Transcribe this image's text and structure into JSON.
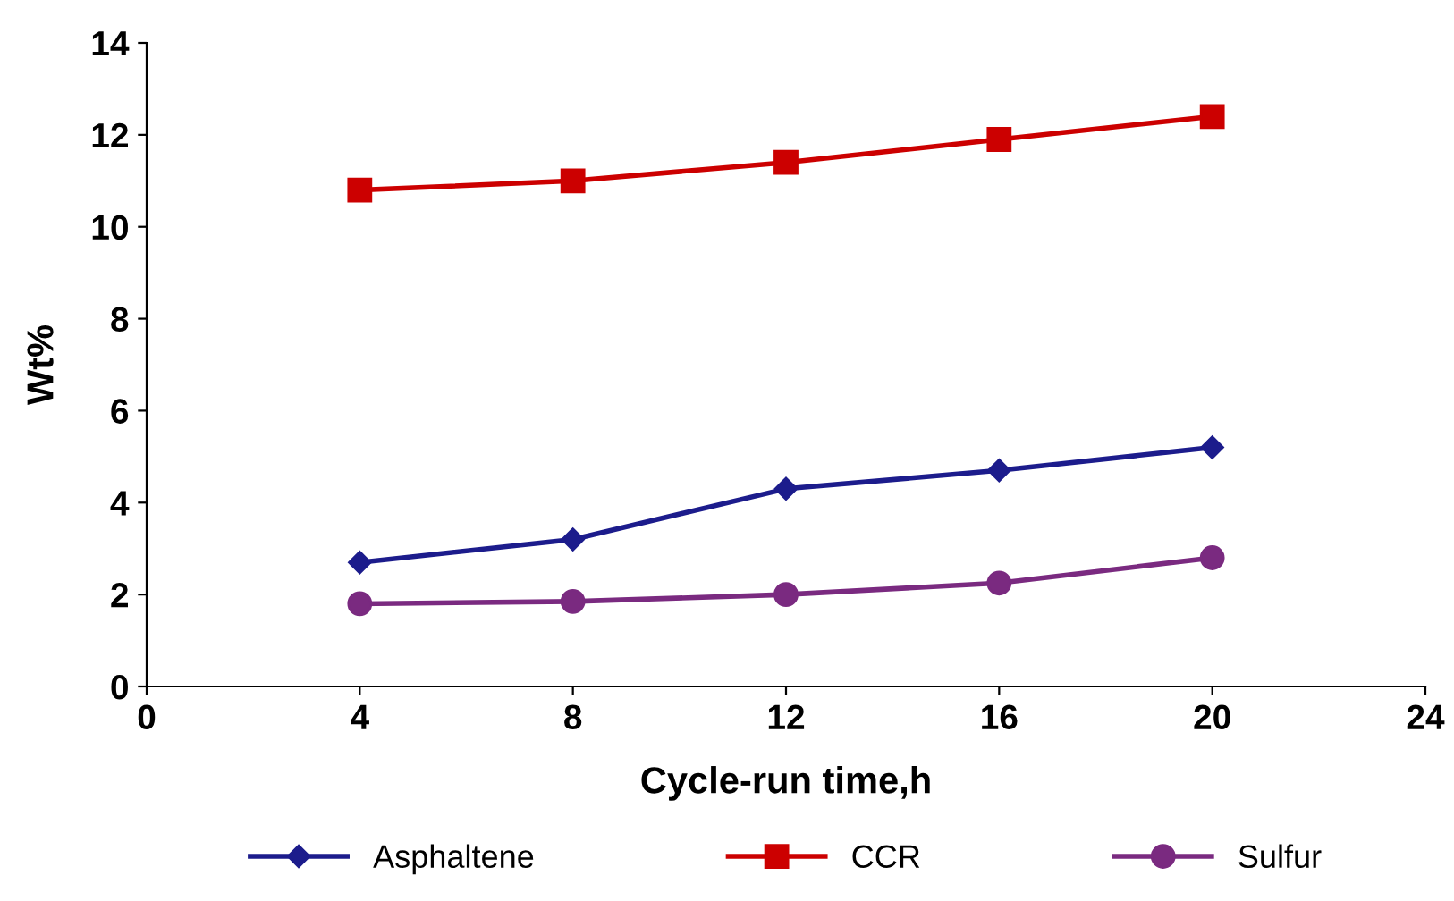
{
  "chart_data": {
    "type": "line",
    "xlabel": "Cycle-run time,h",
    "ylabel": "Wt%",
    "x": [
      4,
      8,
      12,
      16,
      20
    ],
    "series": [
      {
        "name": "Asphaltene",
        "color": "#1c1c8c",
        "marker": "diamond",
        "values": [
          2.7,
          3.2,
          4.3,
          4.7,
          5.2
        ]
      },
      {
        "name": "CCR",
        "color": "#cc0000",
        "marker": "square",
        "values": [
          10.8,
          11.0,
          11.4,
          11.9,
          12.4
        ]
      },
      {
        "name": "Sulfur",
        "color": "#7a2a80",
        "marker": "circle",
        "values": [
          1.8,
          1.85,
          2.0,
          2.25,
          2.8
        ]
      }
    ],
    "xlim": [
      0,
      24
    ],
    "xticks": [
      0,
      4,
      8,
      12,
      16,
      20,
      24
    ],
    "ylim": [
      0,
      14
    ],
    "yticks": [
      0,
      2,
      4,
      6,
      8,
      10,
      12,
      14
    ],
    "grid": false,
    "legend": "bottom",
    "line_style": "solid"
  }
}
